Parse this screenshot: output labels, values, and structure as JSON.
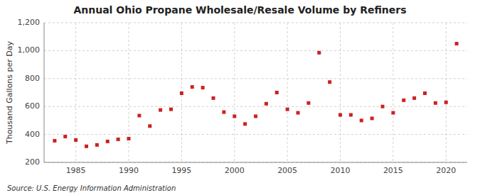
{
  "chart_data": {
    "type": "scatter",
    "title": "Annual Ohio Propane Wholesale/Resale Volume by Refiners",
    "ylabel": "Thousand Gallons per Day",
    "source": "Source: U.S. Energy Information Administration",
    "x": [
      1983,
      1984,
      1985,
      1986,
      1987,
      1988,
      1989,
      1990,
      1991,
      1992,
      1993,
      1994,
      1995,
      1996,
      1997,
      1998,
      1999,
      2000,
      2001,
      2002,
      2003,
      2004,
      2005,
      2006,
      2007,
      2008,
      2009,
      2010,
      2011,
      2012,
      2013,
      2014,
      2015,
      2016,
      2017,
      2018,
      2019,
      2020,
      2021
    ],
    "values": [
      355,
      385,
      360,
      315,
      325,
      350,
      365,
      370,
      535,
      460,
      575,
      580,
      695,
      740,
      735,
      660,
      560,
      530,
      475,
      530,
      620,
      700,
      580,
      555,
      625,
      985,
      775,
      540,
      540,
      500,
      515,
      600,
      555,
      645,
      660,
      695,
      625,
      630,
      1050
    ],
    "color": "#cc2222",
    "marker": "square",
    "xlim": [
      1982,
      2022
    ],
    "xticks": [
      1985,
      1990,
      1995,
      2000,
      2005,
      2010,
      2015,
      2020
    ],
    "ylim": [
      200,
      1200
    ],
    "yticks": [
      200,
      400,
      600,
      800,
      {
        "value": 1000,
        "label": "1,000"
      },
      {
        "value": 1200,
        "label": "1,200"
      }
    ],
    "grid": true
  }
}
